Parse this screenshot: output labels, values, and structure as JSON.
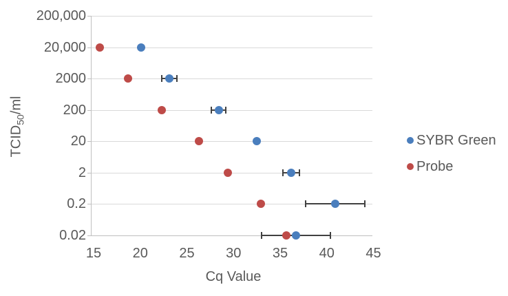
{
  "chart_data": {
    "type": "scatter",
    "title": "",
    "xlabel": "Cq Value",
    "ylabel": {
      "main": "TCID",
      "sub": "50",
      "rest": "/ml"
    },
    "x_ticks": [
      15,
      20,
      25,
      30,
      35,
      40,
      45
    ],
    "xlim": [
      15,
      45
    ],
    "y_scale": "log10",
    "y_ticks": [
      200000,
      20000,
      2000,
      200,
      20,
      2,
      0.2,
      0.02
    ],
    "y_tick_labels": [
      "200,000",
      "20,000",
      "2000",
      "200",
      "20",
      "2",
      "0.2",
      "0.02"
    ],
    "grid": "horizontal-only",
    "legend_position": "right",
    "series": [
      {
        "name": "SYBR Green",
        "color": "#4A7EBD",
        "points": [
          {
            "tcid50_per_ml": 20000,
            "cq": 20.1,
            "cq_err": 0
          },
          {
            "tcid50_per_ml": 2000,
            "cq": 23.1,
            "cq_err": 0.8
          },
          {
            "tcid50_per_ml": 200,
            "cq": 28.4,
            "cq_err": 0.8
          },
          {
            "tcid50_per_ml": 20,
            "cq": 32.5,
            "cq_err": 0
          },
          {
            "tcid50_per_ml": 2,
            "cq": 36.2,
            "cq_err": 0.9
          },
          {
            "tcid50_per_ml": 0.2,
            "cq": 40.9,
            "cq_err": 3.2
          },
          {
            "tcid50_per_ml": 0.02,
            "cq": 36.7,
            "cq_err": 3.7
          }
        ]
      },
      {
        "name": "Probe",
        "color": "#BE4B48",
        "points": [
          {
            "tcid50_per_ml": 20000,
            "cq": 15.7,
            "cq_err": 0
          },
          {
            "tcid50_per_ml": 2000,
            "cq": 18.7,
            "cq_err": 0
          },
          {
            "tcid50_per_ml": 200,
            "cq": 22.3,
            "cq_err": 0
          },
          {
            "tcid50_per_ml": 20,
            "cq": 26.3,
            "cq_err": 0
          },
          {
            "tcid50_per_ml": 2,
            "cq": 29.4,
            "cq_err": 0
          },
          {
            "tcid50_per_ml": 0.2,
            "cq": 32.9,
            "cq_err": 0
          },
          {
            "tcid50_per_ml": 0.02,
            "cq": 35.7,
            "cq_err": 0
          }
        ]
      }
    ],
    "colors": {
      "gridline": "#D9D9D9",
      "axis": "#BFBFBF",
      "text": "#595959",
      "error_bar": "#404040"
    }
  }
}
